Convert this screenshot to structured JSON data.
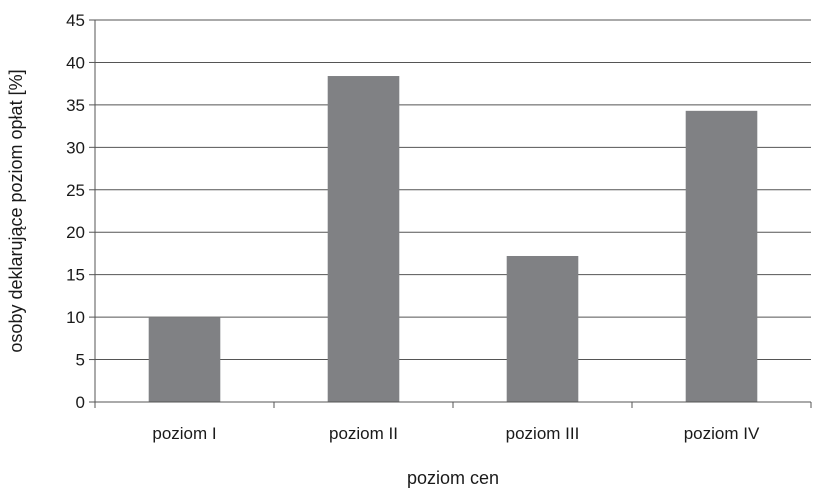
{
  "chart_data": {
    "type": "bar",
    "categories": [
      "poziom I",
      "poziom II",
      "poziom III",
      "poziom IV"
    ],
    "values": [
      10.0,
      38.4,
      17.2,
      34.3
    ],
    "xlabel": "poziom cen",
    "ylabel": "osoby deklarujące poziom opłat [%]",
    "ylim": [
      0,
      45
    ],
    "yticks": [
      0,
      5,
      10,
      15,
      20,
      25,
      30,
      35,
      40,
      45
    ],
    "grid": true,
    "legend": "none",
    "bar_color": "#808184",
    "grid_color": "#555555"
  }
}
